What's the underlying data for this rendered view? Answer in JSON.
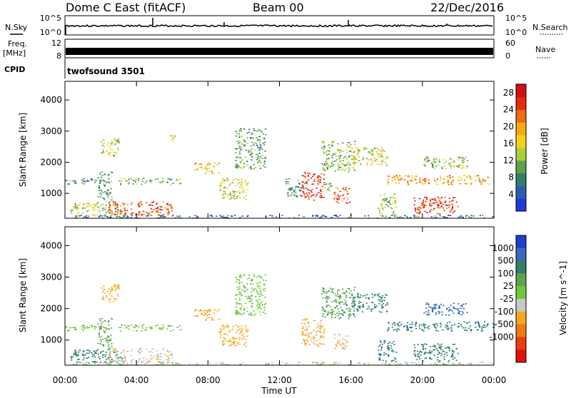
{
  "header": {
    "title": "Dome C East (fitACF)",
    "beam": "Beam 00",
    "date": "22/Dec/2016"
  },
  "param_panels": {
    "nsky_label": "N.Sky",
    "nsearch_label": "N.Search",
    "nsky_ticks": [
      "10^5",
      "10^0"
    ],
    "nsearch_ticks": [
      "10^5",
      "10^0"
    ],
    "freq_label": "Freq.",
    "freq_unit": "[MHz]",
    "freq_ticks": [
      "12",
      "8"
    ],
    "nave_label": "Nave",
    "nave_ticks": [
      "60",
      "0"
    ],
    "cpid_label": "CPID",
    "cpid_value": "twofsound 3501"
  },
  "chart_data": [
    {
      "type": "heatmap",
      "title": "",
      "xlabel": "Time UT",
      "ylabel": "Slant Range [km]",
      "xlim": [
        0,
        24
      ],
      "ylim": [
        200,
        4600
      ],
      "x_ticks": [
        "00:00",
        "04:00",
        "08:00",
        "12:00",
        "16:00",
        "20:00",
        "00:00"
      ],
      "y_ticks": [
        1000,
        2000,
        3000,
        4000
      ],
      "colorbar": {
        "label": "Power [dB]",
        "ticks": [
          4,
          8,
          12,
          16,
          20,
          24,
          28
        ],
        "range": [
          0,
          30
        ],
        "colors": [
          "#1f3bd6",
          "#2a5db0",
          "#2f7f6a",
          "#5fa24a",
          "#a9cf3a",
          "#f4d21a",
          "#f7a81a",
          "#f06a14",
          "#e22b10",
          "#d50f0f"
        ]
      },
      "echo_regions": [
        {
          "t": [
            0.0,
            2.2
          ],
          "r": [
            1300,
            1500
          ],
          "power": 8
        },
        {
          "t": [
            0.3,
            3.2
          ],
          "r": [
            280,
            700
          ],
          "power": 14
        },
        {
          "t": [
            1.8,
            2.6
          ],
          "r": [
            700,
            1700
          ],
          "power": 10
        },
        {
          "t": [
            2.0,
            3.0
          ],
          "r": [
            2200,
            2800
          ],
          "power": 14
        },
        {
          "t": [
            2.4,
            6.0
          ],
          "r": [
            300,
            750
          ],
          "power": 24
        },
        {
          "t": [
            3.0,
            6.5
          ],
          "r": [
            1300,
            1500
          ],
          "power": 12
        },
        {
          "t": [
            5.8,
            6.2
          ],
          "r": [
            2700,
            2900
          ],
          "power": 18
        },
        {
          "t": [
            7.2,
            8.6
          ],
          "r": [
            1650,
            2000
          ],
          "power": 18
        },
        {
          "t": [
            8.6,
            10.2
          ],
          "r": [
            800,
            1500
          ],
          "power": 14
        },
        {
          "t": [
            9.5,
            11.2
          ],
          "r": [
            1800,
            3100
          ],
          "power": 10
        },
        {
          "t": [
            12.3,
            13.2
          ],
          "r": [
            900,
            1500
          ],
          "power": 8
        },
        {
          "t": [
            13.2,
            14.5
          ],
          "r": [
            800,
            1700
          ],
          "power": 26
        },
        {
          "t": [
            14.5,
            15.0
          ],
          "r": [
            1100,
            1400
          ],
          "power": 10
        },
        {
          "t": [
            14.3,
            16.2
          ],
          "r": [
            1700,
            2700
          ],
          "power": 12
        },
        {
          "t": [
            15.0,
            15.9
          ],
          "r": [
            700,
            1200
          ],
          "power": 24
        },
        {
          "t": [
            16.0,
            18.0
          ],
          "r": [
            1900,
            2500
          ],
          "power": 14
        },
        {
          "t": [
            17.5,
            18.5
          ],
          "r": [
            300,
            1000
          ],
          "power": 12
        },
        {
          "t": [
            18.0,
            24.0
          ],
          "r": [
            1300,
            1600
          ],
          "power": 20
        },
        {
          "t": [
            19.5,
            22.0
          ],
          "r": [
            350,
            900
          ],
          "power": 26
        },
        {
          "t": [
            20.0,
            22.5
          ],
          "r": [
            1800,
            2200
          ],
          "power": 12
        },
        {
          "t": [
            0.0,
            24.0
          ],
          "r": [
            220,
            320
          ],
          "power": 6
        }
      ]
    },
    {
      "type": "heatmap",
      "title": "",
      "xlabel": "Time UT",
      "ylabel": "Slant Range [km]",
      "xlim": [
        0,
        24
      ],
      "ylim": [
        200,
        4600
      ],
      "x_ticks": [
        "00:00",
        "04:00",
        "08:00",
        "12:00",
        "16:00",
        "20:00",
        "00:00"
      ],
      "y_ticks": [
        1000,
        2000,
        3000,
        4000
      ],
      "colorbar": {
        "label": "Velocity [m s^-1]",
        "ticks": [
          "1000",
          "500",
          "100",
          "25",
          "-25",
          "-100",
          "-500",
          "-1000"
        ],
        "colors": [
          "#2040c8",
          "#3a6ab8",
          "#2f7f6a",
          "#5fa24a",
          "#6ec83a",
          "#c8c8c8",
          "#f7a81a",
          "#f07a14",
          "#e84010",
          "#e01010"
        ]
      },
      "echo_regions": [
        {
          "t": [
            0.0,
            2.2
          ],
          "r": [
            1300,
            1500
          ],
          "velocity": 0
        },
        {
          "t": [
            0.3,
            3.2
          ],
          "r": [
            280,
            700
          ],
          "velocity": 200
        },
        {
          "t": [
            1.8,
            2.6
          ],
          "r": [
            700,
            1700
          ],
          "velocity": 60
        },
        {
          "t": [
            2.0,
            3.0
          ],
          "r": [
            2200,
            2800
          ],
          "velocity": -150
        },
        {
          "t": [
            2.4,
            6.0
          ],
          "r": [
            300,
            750
          ],
          "velocity": -80
        },
        {
          "t": [
            3.0,
            6.5
          ],
          "r": [
            1300,
            1500
          ],
          "velocity": 0
        },
        {
          "t": [
            7.2,
            8.6
          ],
          "r": [
            1650,
            2000
          ],
          "velocity": -400
        },
        {
          "t": [
            8.6,
            10.2
          ],
          "r": [
            800,
            1500
          ],
          "velocity": -300
        },
        {
          "t": [
            9.5,
            11.2
          ],
          "r": [
            1800,
            3100
          ],
          "velocity": 0
        },
        {
          "t": [
            13.2,
            14.5
          ],
          "r": [
            800,
            1700
          ],
          "velocity": -120
        },
        {
          "t": [
            14.3,
            16.2
          ],
          "r": [
            1700,
            2700
          ],
          "velocity": 80
        },
        {
          "t": [
            15.0,
            15.9
          ],
          "r": [
            700,
            1200
          ],
          "velocity": -90
        },
        {
          "t": [
            16.0,
            18.0
          ],
          "r": [
            1900,
            2500
          ],
          "velocity": 300
        },
        {
          "t": [
            17.5,
            18.5
          ],
          "r": [
            300,
            1000
          ],
          "velocity": 400
        },
        {
          "t": [
            18.0,
            24.0
          ],
          "r": [
            1300,
            1600
          ],
          "velocity": 400
        },
        {
          "t": [
            19.5,
            22.0
          ],
          "r": [
            350,
            900
          ],
          "velocity": 300
        },
        {
          "t": [
            20.0,
            22.5
          ],
          "r": [
            1800,
            2200
          ],
          "velocity": 700
        },
        {
          "t": [
            0.0,
            24.0
          ],
          "r": [
            220,
            320
          ],
          "velocity": -30
        }
      ]
    }
  ]
}
